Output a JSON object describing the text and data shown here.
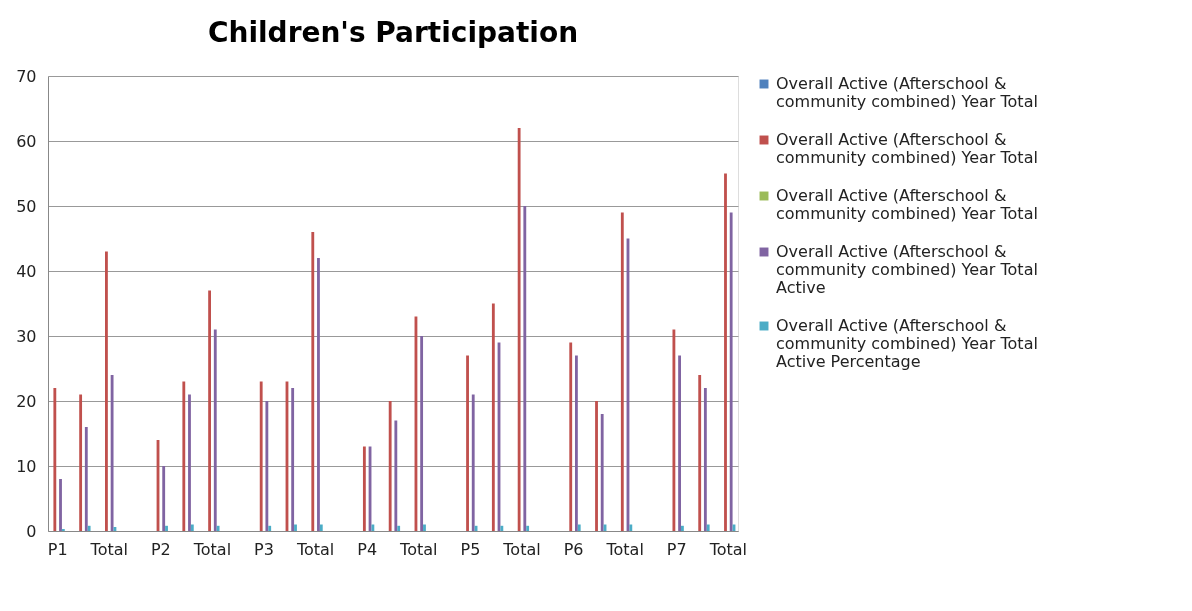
{
  "chart_data": {
    "type": "bar",
    "title": "Children's Participation",
    "categories": [
      "P1",
      null,
      "Total",
      null,
      "P2",
      null,
      "Total",
      null,
      "P3",
      null,
      "Total",
      null,
      "P4",
      null,
      "Total",
      null,
      "P5",
      null,
      "Total",
      null,
      "P6",
      null,
      "Total",
      null,
      "P7",
      null,
      "Total"
    ],
    "series": [
      {
        "name": "Overall Active (Afterschool & community combined) Year Total",
        "color": "#4f81bd",
        "values": [
          null,
          null,
          null,
          null,
          null,
          null,
          null,
          null,
          null,
          null,
          null,
          null,
          null,
          null,
          null,
          null,
          null,
          null,
          null,
          null,
          null,
          null,
          null,
          null,
          null,
          null,
          null
        ]
      },
      {
        "name": "Overall Active (Afterschool & community combined) Year Total",
        "color": "#c0504d",
        "values": [
          22,
          21,
          43,
          null,
          14,
          23,
          37,
          null,
          23,
          23,
          46,
          null,
          13,
          20,
          33,
          null,
          27,
          35,
          62,
          null,
          29,
          20,
          49,
          null,
          31,
          24,
          55
        ]
      },
      {
        "name": "Overall Active (Afterschool & community combined) Year Total",
        "color": "#9bbb59",
        "values": [
          null,
          null,
          null,
          null,
          null,
          null,
          null,
          null,
          null,
          null,
          null,
          null,
          null,
          null,
          null,
          null,
          null,
          null,
          null,
          null,
          null,
          null,
          null,
          null,
          null,
          null,
          null
        ]
      },
      {
        "name": "Overall Active (Afterschool & community combined) Year Total Active",
        "color": "#8064a2",
        "values": [
          8,
          16,
          24,
          null,
          10,
          21,
          31,
          null,
          20,
          22,
          42,
          null,
          13,
          17,
          30,
          null,
          21,
          29,
          50,
          null,
          27,
          18,
          45,
          null,
          27,
          22,
          49
        ]
      },
      {
        "name": "Overall Active (Afterschool & community combined) Year Total Active Percentage",
        "color": "#4bacc6",
        "values": [
          0.3,
          0.8,
          0.6,
          null,
          0.8,
          1,
          0.8,
          null,
          0.8,
          1,
          1,
          null,
          1,
          0.8,
          1,
          null,
          0.8,
          0.8,
          0.8,
          null,
          1,
          1,
          1,
          null,
          0.8,
          1,
          1
        ]
      }
    ],
    "ylim": [
      0,
      70
    ],
    "yticks": [
      0,
      10,
      20,
      30,
      40,
      50,
      60,
      70
    ],
    "grid": "y",
    "legend": "right"
  }
}
